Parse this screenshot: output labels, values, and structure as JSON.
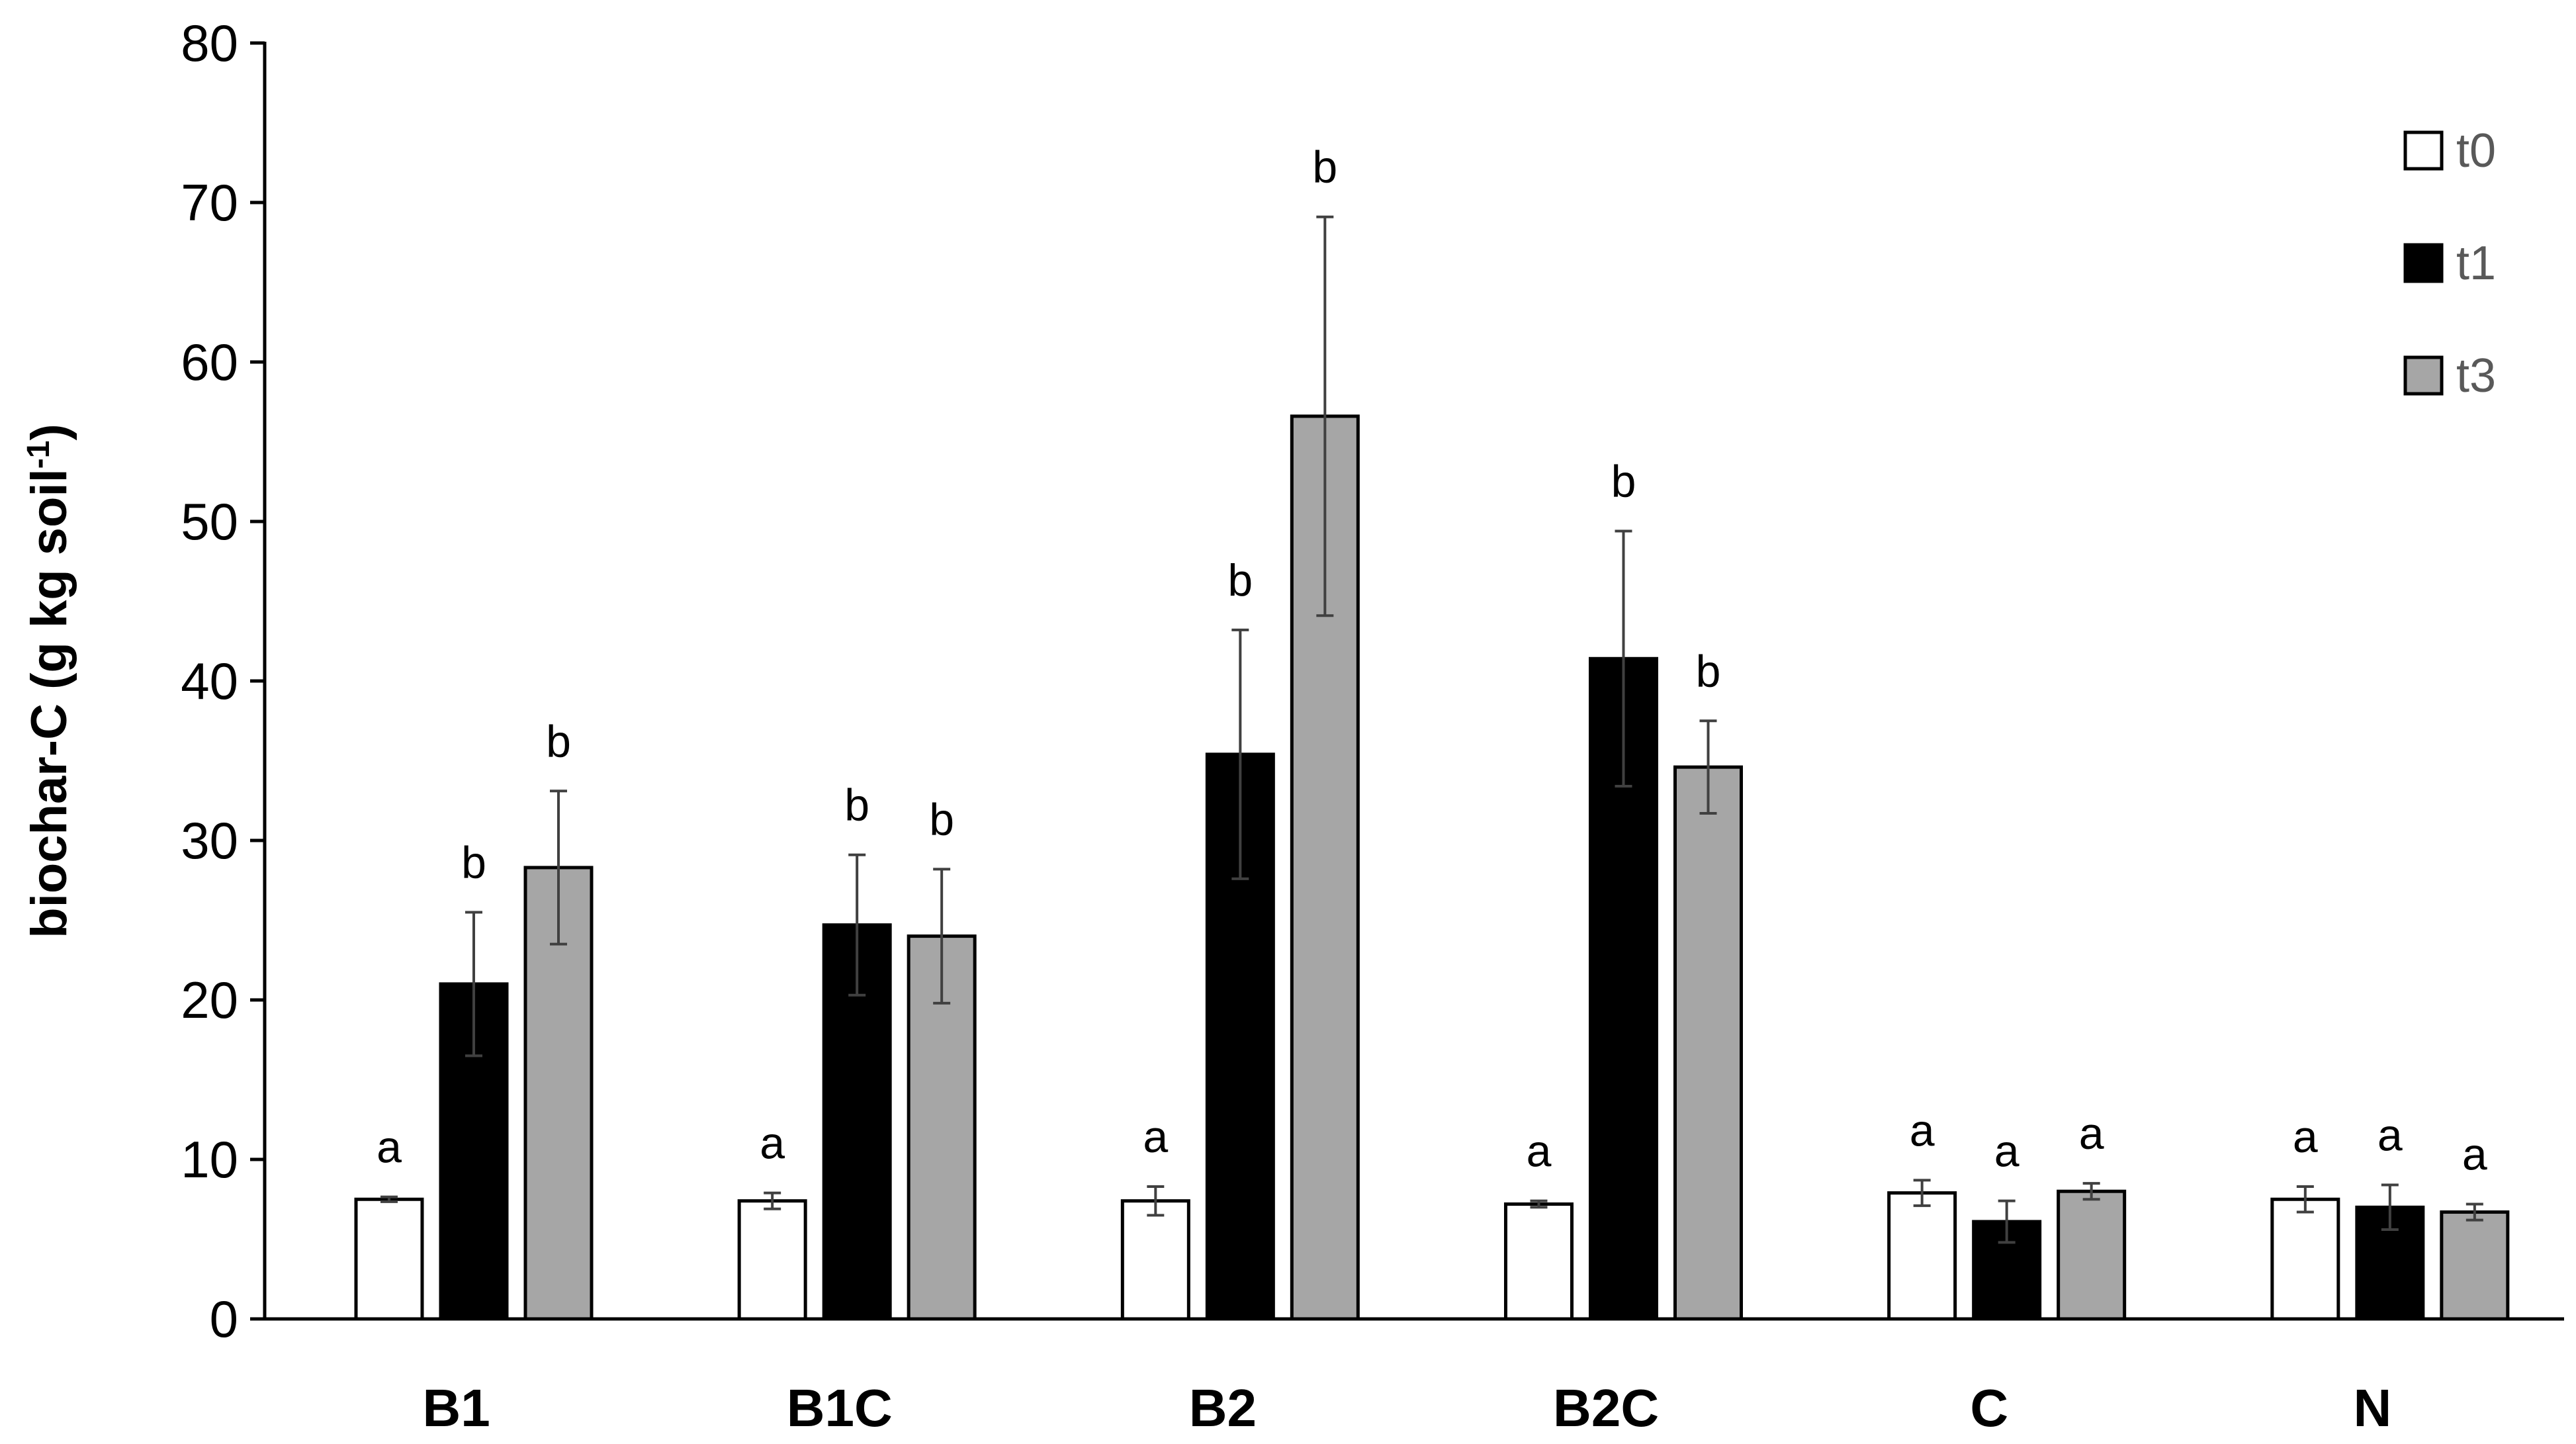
{
  "chart_data": {
    "type": "bar",
    "title": "",
    "xlabel": "",
    "ylabel": {
      "main": "biochar-C (g kg soil",
      "superscript": "-1",
      "close": ")"
    },
    "ylim": [
      0,
      80
    ],
    "yticks": [
      0,
      10,
      20,
      30,
      40,
      50,
      60,
      70,
      80
    ],
    "grid": false,
    "legend_position": "top-right",
    "categories": [
      "B1",
      "B1C",
      "B2",
      "B2C",
      "C",
      "N"
    ],
    "series": [
      {
        "name": "t0",
        "color": "#ffffff",
        "values": [
          7.5,
          7.4,
          7.4,
          7.2,
          7.9,
          7.5
        ],
        "errors": [
          0.15,
          0.5,
          0.9,
          0.2,
          0.8,
          0.8
        ],
        "letters": [
          "a",
          "a",
          "a",
          "a",
          "a",
          "a"
        ]
      },
      {
        "name": "t1",
        "color": "#000000",
        "values": [
          21.0,
          24.7,
          35.4,
          41.4,
          6.1,
          7.0
        ],
        "errors": [
          4.5,
          4.4,
          7.8,
          8.0,
          1.3,
          1.4
        ],
        "letters": [
          "b",
          "b",
          "b",
          "b",
          "a",
          "a"
        ]
      },
      {
        "name": "t3",
        "color": "#a6a6a6",
        "values": [
          28.3,
          24.0,
          56.6,
          34.6,
          8.0,
          6.7
        ],
        "errors": [
          4.8,
          4.2,
          12.5,
          2.9,
          0.5,
          0.5
        ],
        "letters": [
          "b",
          "b",
          "b",
          "b",
          "a",
          "a"
        ]
      }
    ]
  }
}
